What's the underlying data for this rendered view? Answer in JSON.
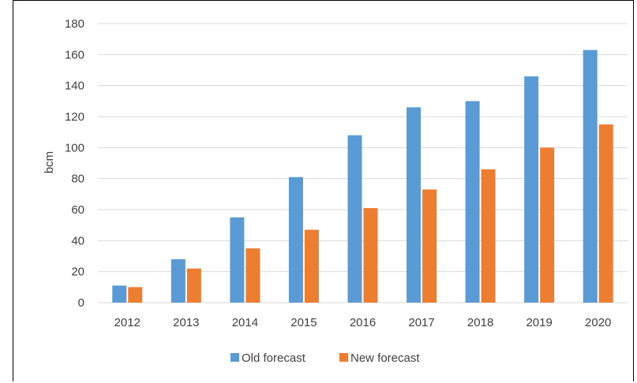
{
  "chart_data": {
    "type": "bar",
    "title": "",
    "xlabel": "",
    "ylabel": "bcm",
    "ylim": [
      0,
      180
    ],
    "y_ticks": [
      0,
      20,
      40,
      60,
      80,
      100,
      120,
      140,
      160,
      180
    ],
    "grid": true,
    "legend_position": "bottom",
    "categories": [
      "2012",
      "2013",
      "2014",
      "2015",
      "2016",
      "2017",
      "2018",
      "2019",
      "2020"
    ],
    "series": [
      {
        "name": "Old forecast",
        "color": "#5B9BD5",
        "values": [
          11,
          28,
          55,
          81,
          108,
          126,
          130,
          146,
          163
        ]
      },
      {
        "name": "New forecast",
        "color": "#ED7D31",
        "values": [
          10,
          22,
          35,
          47,
          61,
          73,
          86,
          100,
          115
        ]
      }
    ]
  }
}
